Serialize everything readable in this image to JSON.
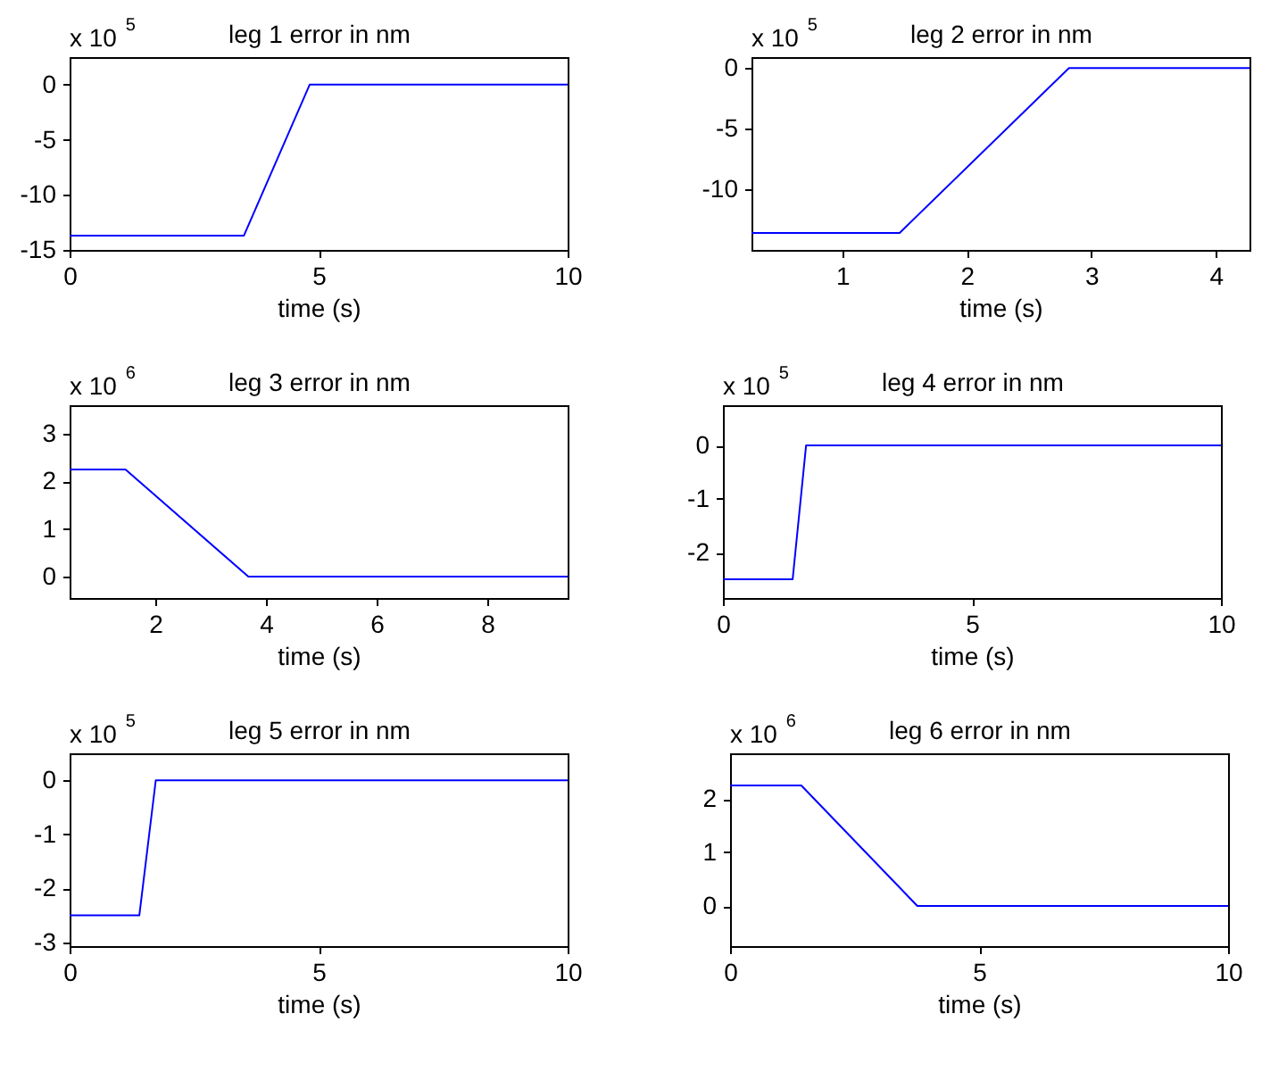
{
  "chart_data": [
    {
      "type": "line",
      "title": "leg 1 error in nm",
      "xlabel": "time (s)",
      "annotations": [
        "x 10$^{5}$"
      ],
      "x": [
        0,
        3.5,
        4.82,
        10
      ],
      "values": [
        -13.7,
        -13.7,
        0,
        0
      ],
      "color": "#0000ff",
      "xlim": [
        0,
        10
      ],
      "xticks": [
        0,
        5,
        10
      ],
      "ylim": [
        -15,
        2.5
      ],
      "yticks": [
        -15,
        -10,
        -5,
        0
      ]
    },
    {
      "type": "line",
      "title": "leg 2 error in nm",
      "xlabel": "time (s)",
      "annotations": [
        "x 10$^{5}$"
      ],
      "x": [
        0.27,
        1.46,
        2.82,
        4.27
      ],
      "values": [
        -13.6,
        -13.6,
        0,
        0
      ],
      "color": "#0000ff",
      "xlim": [
        0.27,
        4.27
      ],
      "xticks": [
        1,
        2,
        3,
        4
      ],
      "ylim": [
        -15,
        0.9
      ],
      "yticks": [
        -10,
        -5,
        0
      ]
    },
    {
      "type": "line",
      "title": "leg 3 error in nm",
      "xlabel": "time (s)",
      "annotations": [
        "x 10$^{6}$"
      ],
      "x": [
        0.45,
        1.46,
        3.68,
        9.45
      ],
      "values": [
        2.25,
        2.25,
        0,
        0
      ],
      "color": "#0000ff",
      "xlim": [
        0.45,
        9.45
      ],
      "xticks": [
        2,
        4,
        6,
        8
      ],
      "ylim": [
        -0.45,
        3.6
      ],
      "yticks": [
        0,
        1,
        2,
        3
      ]
    },
    {
      "type": "line",
      "title": "leg 4 error in nm",
      "xlabel": "time (s)",
      "annotations": [
        "x 10$^{5}$"
      ],
      "x": [
        0,
        1.4,
        1.67,
        10
      ],
      "values": [
        -2.5,
        -2.5,
        0,
        0
      ],
      "color": "#0000ff",
      "xlim": [
        0,
        10
      ],
      "xticks": [
        0,
        5,
        10
      ],
      "ylim": [
        -2.85,
        0.75
      ],
      "yticks": [
        -2,
        -1,
        0
      ]
    },
    {
      "type": "line",
      "title": "leg 5 error in nm",
      "xlabel": "time (s)",
      "annotations": [
        "x 10$^{5}$"
      ],
      "x": [
        0,
        1.4,
        1.73,
        10
      ],
      "values": [
        -2.5,
        -2.5,
        0,
        0
      ],
      "color": "#0000ff",
      "xlim": [
        0,
        10
      ],
      "xticks": [
        0,
        5,
        10
      ],
      "ylim": [
        -3.07,
        0.5
      ],
      "yticks": [
        -3,
        -2,
        -1,
        0
      ]
    },
    {
      "type": "line",
      "title": "leg 6 error in nm",
      "xlabel": "time (s)",
      "annotations": [
        "x 10$^{6}$"
      ],
      "x": [
        0,
        1.43,
        3.76,
        10
      ],
      "values": [
        2.25,
        2.25,
        0,
        0
      ],
      "color": "#0000ff",
      "xlim": [
        0,
        10
      ],
      "xticks": [
        0,
        5,
        10
      ],
      "ylim": [
        -0.75,
        2.85
      ],
      "yticks": [
        0,
        1,
        2
      ]
    }
  ]
}
